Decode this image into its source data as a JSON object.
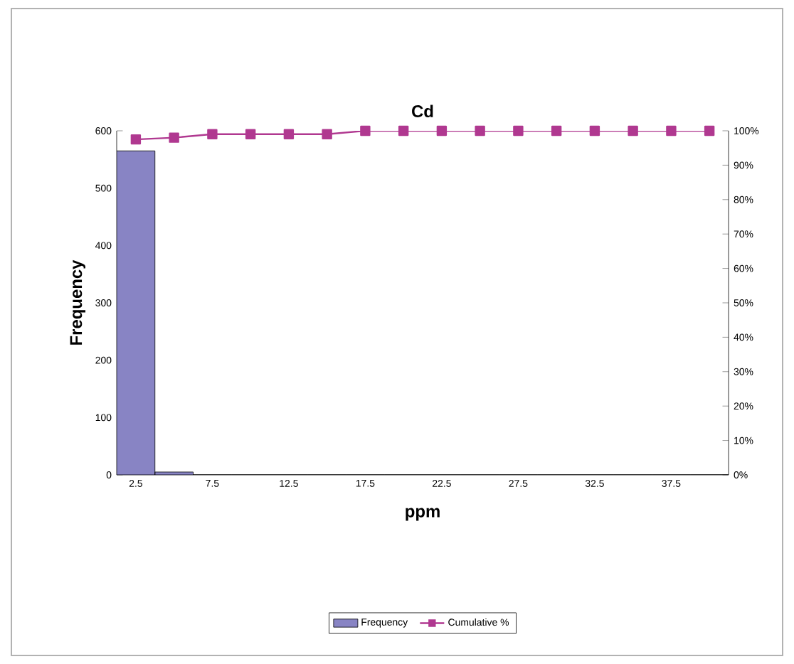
{
  "chart_data": {
    "type": "bar",
    "title": "Cd",
    "xlabel": "ppm",
    "ylabel": "Frequency",
    "categories": [
      "2.5",
      null,
      "7.5",
      null,
      "12.5",
      null,
      "17.5",
      null,
      "22.5",
      null,
      "27.5",
      null,
      "32.5",
      null,
      "37.5",
      null
    ],
    "series": [
      {
        "name": "Frequency",
        "color": "#8884c4",
        "values": [
          565,
          5,
          0,
          0,
          0,
          0,
          0,
          0,
          0,
          0,
          0,
          0,
          0,
          0,
          0,
          0
        ]
      },
      {
        "name": "Cumulative %",
        "type": "line",
        "axis": "y2",
        "color": "#b03890",
        "values": [
          97.5,
          98,
          99,
          99,
          99,
          99,
          100,
          100,
          100,
          100,
          100,
          100,
          100,
          100,
          100,
          100
        ]
      }
    ],
    "ylim": [
      0,
      600
    ],
    "yticks": [
      0,
      100,
      200,
      300,
      400,
      500,
      600
    ],
    "y2lim": [
      0,
      100
    ],
    "y2ticks": [
      {
        "value": 0,
        "label": "0%"
      },
      {
        "value": 10,
        "label": "10%"
      },
      {
        "value": 20,
        "label": "20%"
      },
      {
        "value": 30,
        "label": "30%"
      },
      {
        "value": 40,
        "label": "40%"
      },
      {
        "value": 50,
        "label": "50%"
      },
      {
        "value": 60,
        "label": "60%"
      },
      {
        "value": 70,
        "label": "70%"
      },
      {
        "value": 80,
        "label": "80%"
      },
      {
        "value": 90,
        "label": "90%"
      },
      {
        "value": 100,
        "label": "100%"
      }
    ],
    "marker": "square",
    "grid": false,
    "legend": "bottom"
  }
}
